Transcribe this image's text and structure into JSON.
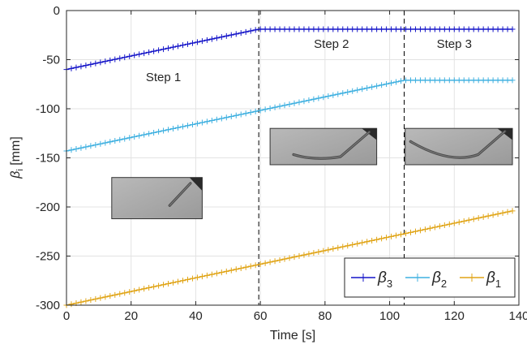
{
  "chart_data": {
    "type": "line",
    "xlabel": "Time [s]",
    "ylabel": {
      "main": "β",
      "sub": "i",
      "unit": " [mm]"
    },
    "xlim": [
      0,
      140
    ],
    "ylim": [
      -300,
      0
    ],
    "xticks": [
      0,
      20,
      40,
      60,
      80,
      100,
      120,
      140
    ],
    "yticks": [
      0,
      -50,
      -100,
      -150,
      -200,
      -250,
      -300
    ],
    "grid": true,
    "legend": {
      "placement": "bottom-right",
      "orientation": "horizontal",
      "entries": [
        {
          "symbol": "β",
          "sub": "3",
          "series": 0
        },
        {
          "symbol": "β",
          "sub": "2",
          "series": 1
        },
        {
          "symbol": "β",
          "sub": "1",
          "series": 2
        }
      ]
    },
    "vlines": [
      {
        "x": 59.5,
        "style": "dashed",
        "color": "#000000"
      },
      {
        "x": 104.5,
        "style": "dashed",
        "color": "#000000"
      }
    ],
    "annotations": [
      {
        "text": "Step 1",
        "x": 30,
        "y": -72
      },
      {
        "text": "Step 2",
        "x": 82,
        "y": -38
      },
      {
        "text": "Step 3",
        "x": 120,
        "y": -38
      }
    ],
    "marker_step": 1.5,
    "series": [
      {
        "name": "β3",
        "color": "#1414c8",
        "x": [
          0,
          59.5,
          138
        ],
        "y": [
          -60,
          -19,
          -19
        ]
      },
      {
        "name": "β2",
        "color": "#3fb0e0",
        "x": [
          0,
          104.5,
          138
        ],
        "y": [
          -143,
          -71,
          -71
        ]
      },
      {
        "name": "β1",
        "color": "#e0a416",
        "x": [
          0,
          138
        ],
        "y": [
          -300,
          -204
        ]
      }
    ],
    "insets": [
      {
        "name": "tool-photo-straight",
        "x0": 14,
        "y0": -170,
        "x1": 42,
        "y1": -212,
        "shape": "straight"
      },
      {
        "name": "tool-photo-bent-step2",
        "x0": 63,
        "y0": -120,
        "x1": 96,
        "y1": -157,
        "shape": "bent2"
      },
      {
        "name": "tool-photo-bent-step3",
        "x0": 104.8,
        "y0": -120,
        "x1": 138,
        "y1": -157,
        "shape": "bent3"
      }
    ]
  }
}
